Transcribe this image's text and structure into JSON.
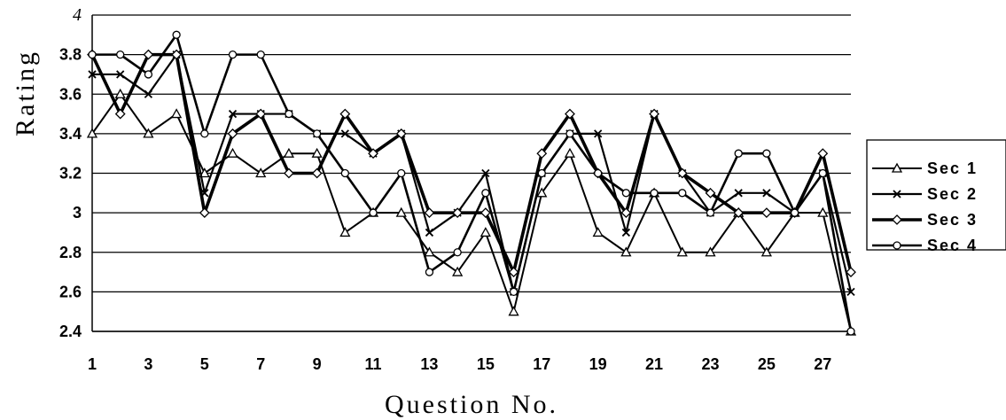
{
  "chart_data": {
    "type": "line",
    "xlabel": "Question No.",
    "ylabel": "Rating",
    "ylim": [
      2.4,
      4
    ],
    "y_ticks": [
      "2.4",
      "2.6",
      "2.8",
      "3",
      "3.2",
      "3.4",
      "3.6",
      "3.8",
      "4"
    ],
    "x": [
      1,
      2,
      3,
      4,
      5,
      6,
      7,
      8,
      9,
      10,
      11,
      12,
      13,
      14,
      15,
      16,
      17,
      18,
      19,
      20,
      21,
      22,
      23,
      24,
      25,
      26,
      27,
      28
    ],
    "x_tick_labels": [
      "1",
      "3",
      "5",
      "7",
      "9",
      "11",
      "13",
      "15",
      "17",
      "19",
      "21",
      "23",
      "25",
      "27"
    ],
    "grid": "horizontal",
    "legend_position": "right",
    "series": [
      {
        "name": "Sec 1",
        "marker": "triangle",
        "stroke_width": 2,
        "values": [
          3.4,
          3.6,
          3.4,
          3.5,
          3.2,
          3.3,
          3.2,
          3.3,
          3.3,
          2.9,
          3.0,
          3.0,
          2.8,
          2.7,
          2.9,
          2.5,
          3.1,
          3.3,
          2.9,
          2.8,
          3.1,
          2.8,
          2.8,
          3.0,
          2.8,
          3.0,
          3.0,
          2.4
        ]
      },
      {
        "name": "Sec 2",
        "marker": "x",
        "stroke_width": 2.2,
        "values": [
          3.7,
          3.7,
          3.6,
          3.8,
          3.1,
          3.5,
          3.5,
          3.5,
          3.4,
          3.4,
          3.3,
          3.4,
          2.9,
          3.0,
          3.2,
          2.6,
          3.2,
          3.4,
          3.4,
          2.9,
          3.5,
          3.2,
          3.0,
          3.1,
          3.1,
          3.0,
          3.2,
          2.6
        ]
      },
      {
        "name": "Sec 3",
        "marker": "diamond",
        "stroke_width": 3.6,
        "values": [
          3.8,
          3.5,
          3.8,
          3.8,
          3.0,
          3.4,
          3.5,
          3.2,
          3.2,
          3.5,
          3.3,
          3.4,
          3.0,
          3.0,
          3.0,
          2.7,
          3.3,
          3.5,
          3.2,
          3.0,
          3.5,
          3.2,
          3.1,
          3.0,
          3.0,
          3.0,
          3.3,
          2.7
        ]
      },
      {
        "name": "Sec 4",
        "marker": "circle",
        "stroke_width": 2.6,
        "values": [
          3.8,
          3.8,
          3.7,
          3.9,
          3.4,
          3.8,
          3.8,
          3.5,
          3.4,
          3.2,
          3.0,
          3.2,
          2.7,
          2.8,
          3.1,
          2.6,
          3.2,
          3.4,
          3.2,
          3.1,
          3.1,
          3.1,
          3.0,
          3.3,
          3.3,
          3.0,
          3.2,
          2.4
        ]
      }
    ]
  }
}
